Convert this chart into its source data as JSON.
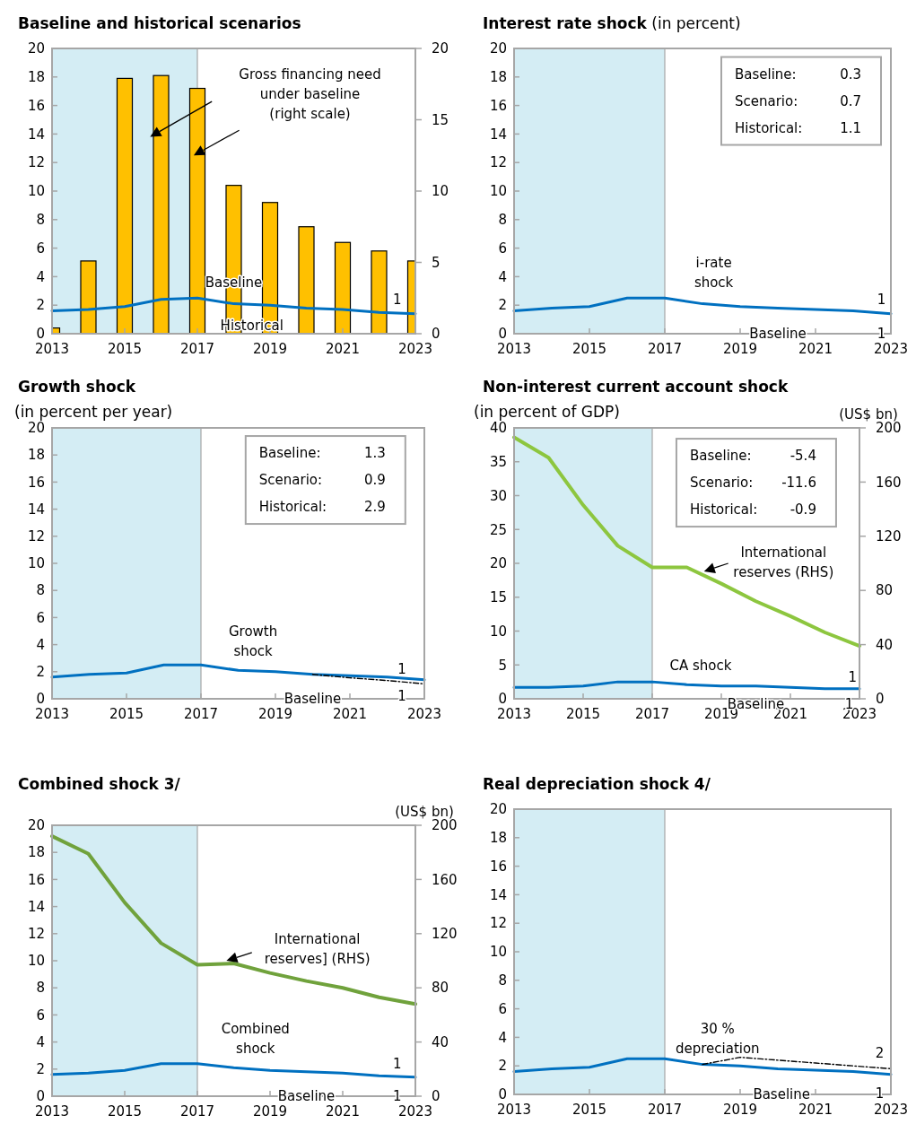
{
  "chart_data": [
    {
      "type": "line",
      "title": "Baseline and historical scenarios",
      "x": [
        2013,
        2014,
        2015,
        2016,
        2017,
        2018,
        2019,
        2020,
        2021,
        2022,
        2023
      ],
      "xlim": [
        2013,
        2023
      ],
      "xticks": [
        2013,
        2015,
        2017,
        2019,
        2021,
        2023
      ],
      "ylim": [
        0,
        20
      ],
      "yticks": [
        0,
        2,
        4,
        6,
        8,
        10,
        12,
        14,
        16,
        18,
        20
      ],
      "y2lim": [
        0,
        20
      ],
      "y2ticks": [
        0,
        5,
        10,
        15,
        20
      ],
      "bands": [
        {
          "axis": "x",
          "from": 2013,
          "to": 2017,
          "color": "#d4edf4"
        }
      ],
      "series": [
        {
          "type": "bar",
          "axis": "y2",
          "color": "#ffc000",
          "values": [
            0.4,
            5.1,
            17.9,
            18.1,
            17.2,
            10.4,
            9.2,
            7.5,
            6.4,
            5.8,
            5.1
          ]
        },
        {
          "color": "#0070c0",
          "values": [
            1.6,
            1.7,
            1.9,
            2.4,
            2.5,
            2.1,
            2.0,
            1.8,
            1.7,
            1.5,
            1.4
          ]
        }
      ],
      "annotations": [
        "Gross financing need under baseline (right scale)",
        "Baseline",
        "Historical",
        "1"
      ]
    },
    {
      "type": "line",
      "title": "Interest rate shock",
      "subtitle": "(in percent)",
      "x": [
        2013,
        2014,
        2015,
        2016,
        2017,
        2018,
        2019,
        2020,
        2021,
        2022,
        2023
      ],
      "xlim": [
        2013,
        2023
      ],
      "xticks": [
        2013,
        2015,
        2017,
        2019,
        2021,
        2023
      ],
      "ylim": [
        0,
        20
      ],
      "yticks": [
        0,
        2,
        4,
        6,
        8,
        10,
        12,
        14,
        16,
        18,
        20
      ],
      "bands": [
        {
          "axis": "x",
          "from": 2013,
          "to": 2017,
          "color": "#d4edf4"
        }
      ],
      "series": [
        {
          "color": "#0070c0",
          "values": [
            1.6,
            1.8,
            1.9,
            2.5,
            2.5,
            2.1,
            1.9,
            1.8,
            1.7,
            1.6,
            1.4
          ]
        }
      ],
      "annotations": [
        "Baseline:",
        "0.3",
        "Scenario:",
        "0.7",
        "Historical:",
        "1.1",
        "i-rate shock",
        "1",
        "Baseline",
        "1"
      ]
    },
    {
      "type": "line",
      "title": "Growth shock",
      "subtitle": "(in percent per year)",
      "x": [
        2013,
        2014,
        2015,
        2016,
        2017,
        2018,
        2019,
        2020,
        2021,
        2022,
        2023
      ],
      "xlim": [
        2013,
        2023
      ],
      "xticks": [
        2013,
        2015,
        2017,
        2019,
        2021,
        2023
      ],
      "ylim": [
        0,
        20
      ],
      "yticks": [
        0,
        2,
        4,
        6,
        8,
        10,
        12,
        14,
        16,
        18,
        20
      ],
      "bands": [
        {
          "axis": "x",
          "from": 2013,
          "to": 2017,
          "color": "#d4edf4"
        }
      ],
      "series": [
        {
          "color": "#0070c0",
          "values": [
            1.6,
            1.8,
            1.9,
            2.5,
            2.5,
            2.1,
            2.0,
            1.8,
            1.7,
            1.6,
            1.4
          ]
        },
        {
          "color": "#000000",
          "line_style": "dashed",
          "values": [
            null,
            null,
            null,
            null,
            null,
            null,
            null,
            1.8,
            1.55,
            1.35,
            1.1
          ]
        }
      ],
      "annotations": [
        "Baseline:",
        "1.3",
        "Scenario:",
        "0.9",
        "Historical:",
        "2.9",
        "Growth shock",
        "1",
        "Baseline",
        "1"
      ]
    },
    {
      "type": "line",
      "title": "Non-interest current account shock",
      "subtitle": "(in percent of GDP)",
      "y2label": "(US$ bn)",
      "x": [
        2013,
        2014,
        2015,
        2016,
        2017,
        2018,
        2019,
        2020,
        2021,
        2022,
        2023
      ],
      "xlim": [
        2013,
        2023
      ],
      "xticks": [
        2013,
        2015,
        2017,
        2019,
        2021,
        2023
      ],
      "ylim": [
        0,
        40
      ],
      "yticks": [
        0,
        5,
        10,
        15,
        20,
        25,
        30,
        35,
        40
      ],
      "y2lim": [
        0,
        200
      ],
      "y2ticks": [
        0,
        40,
        80,
        120,
        160,
        200
      ],
      "bands": [
        {
          "axis": "x",
          "from": 2013,
          "to": 2017,
          "color": "#d4edf4"
        }
      ],
      "series": [
        {
          "axis": "y2",
          "color": "#8dc63f",
          "values": [
            193,
            178,
            143,
            113,
            97,
            97,
            85,
            72,
            61,
            49,
            39
          ]
        },
        {
          "color": "#0070c0",
          "values": [
            1.7,
            1.7,
            1.9,
            2.5,
            2.5,
            2.1,
            1.9,
            1.9,
            1.7,
            1.5,
            1.5
          ]
        }
      ],
      "annotations": [
        "Baseline:",
        "-5.4",
        "Scenario:",
        "-11.6",
        "Historical:",
        "-0.9",
        "International reserves (RHS)",
        "CA shock",
        "1",
        "Baseline",
        "1"
      ]
    },
    {
      "type": "line",
      "title": "Combined shock  3/",
      "y2label": "(US$ bn)",
      "x": [
        2013,
        2014,
        2015,
        2016,
        2017,
        2018,
        2019,
        2020,
        2021,
        2022,
        2023
      ],
      "xlim": [
        2013,
        2023
      ],
      "xticks": [
        2013,
        2015,
        2017,
        2019,
        2021,
        2023
      ],
      "ylim": [
        0,
        20
      ],
      "yticks": [
        0,
        2,
        4,
        6,
        8,
        10,
        12,
        14,
        16,
        18,
        20
      ],
      "y2lim": [
        0,
        200
      ],
      "y2ticks": [
        0,
        40,
        80,
        120,
        160,
        200
      ],
      "bands": [
        {
          "axis": "x",
          "from": 2013,
          "to": 2017,
          "color": "#d4edf4"
        }
      ],
      "series": [
        {
          "axis": "y2",
          "color": "#70a23c",
          "values": [
            192,
            179,
            143,
            113,
            97,
            98,
            91,
            85,
            80,
            73,
            68
          ]
        },
        {
          "color": "#0070c0",
          "values": [
            1.6,
            1.7,
            1.9,
            2.4,
            2.4,
            2.1,
            1.9,
            1.8,
            1.7,
            1.5,
            1.4
          ]
        }
      ],
      "annotations": [
        "International reserves] (RHS)",
        "Combined shock",
        "1",
        "Baseline",
        "1"
      ]
    },
    {
      "type": "line",
      "title": "Real depreciation shock  4/",
      "x": [
        2013,
        2014,
        2015,
        2016,
        2017,
        2018,
        2019,
        2020,
        2021,
        2022,
        2023
      ],
      "xlim": [
        2013,
        2023
      ],
      "xticks": [
        2013,
        2015,
        2017,
        2019,
        2021,
        2023
      ],
      "ylim": [
        0,
        20
      ],
      "yticks": [
        0,
        2,
        4,
        6,
        8,
        10,
        12,
        14,
        16,
        18,
        20
      ],
      "bands": [
        {
          "axis": "x",
          "from": 2013,
          "to": 2017,
          "color": "#d4edf4"
        }
      ],
      "series": [
        {
          "color": "#0070c0",
          "values": [
            1.6,
            1.8,
            1.9,
            2.5,
            2.5,
            2.1,
            2.0,
            1.8,
            1.7,
            1.6,
            1.4
          ]
        },
        {
          "color": "#000000",
          "line_style": "dashed",
          "values": [
            null,
            null,
            null,
            null,
            null,
            2.1,
            2.6,
            2.4,
            2.2,
            2.0,
            1.8
          ]
        }
      ],
      "annotations": [
        "30 % depreciation",
        "2",
        "Baseline",
        "1"
      ]
    }
  ]
}
